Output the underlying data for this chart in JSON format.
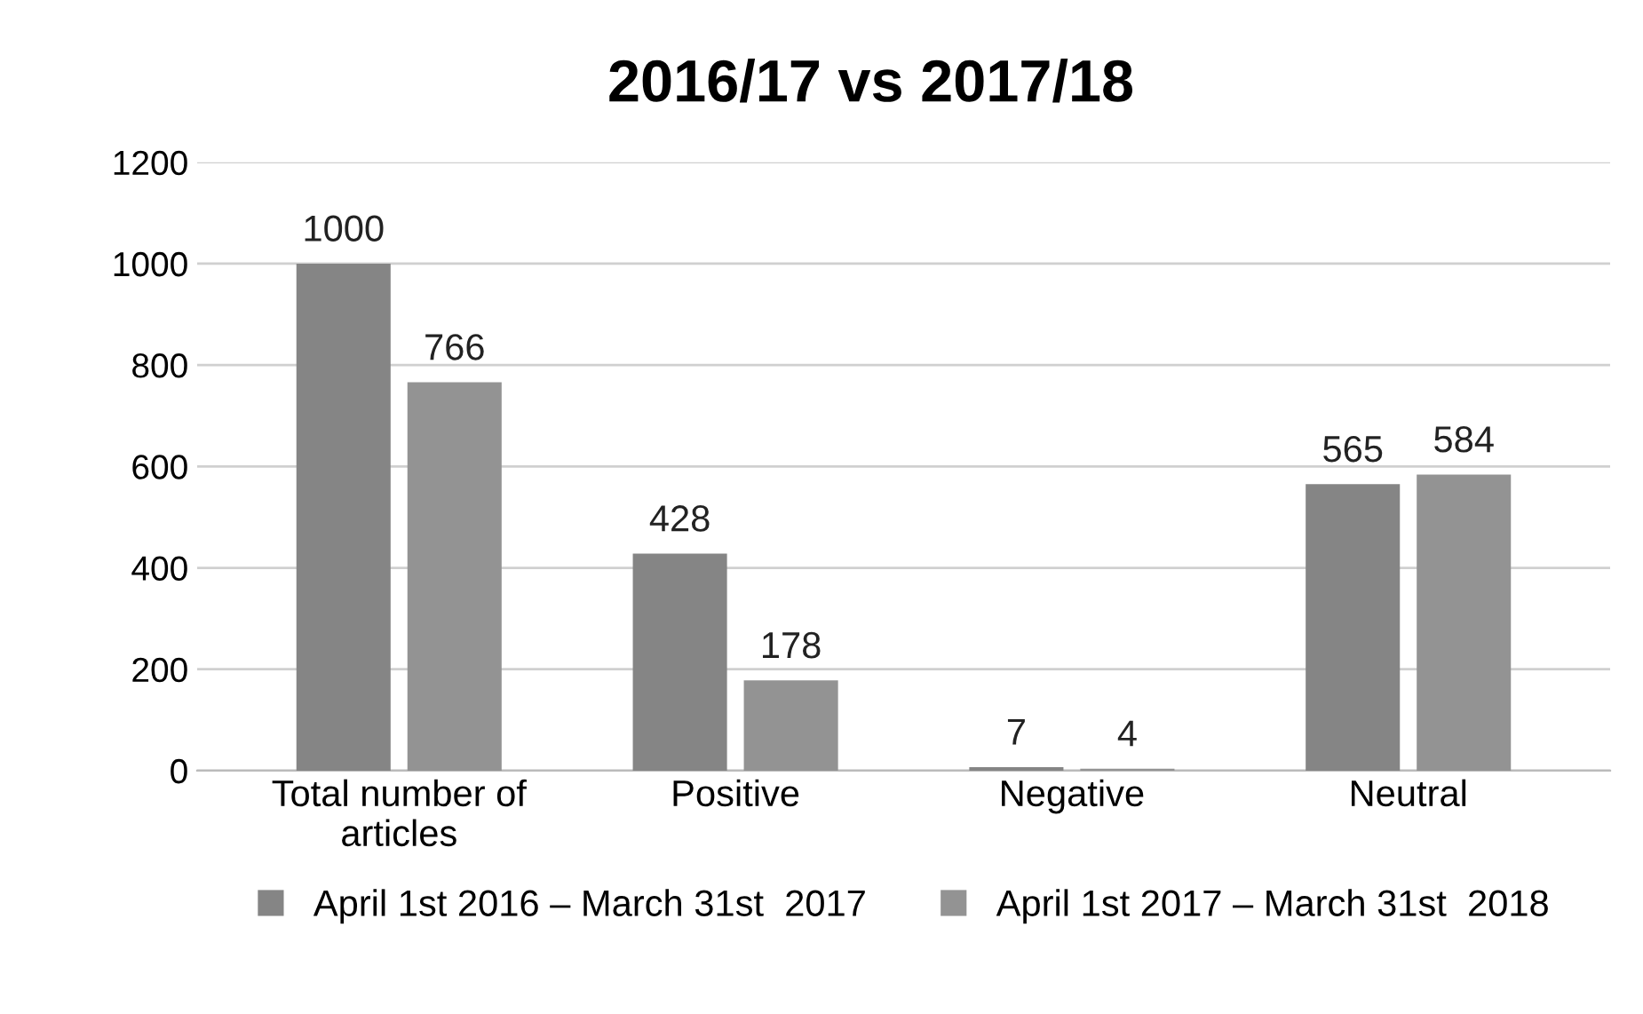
{
  "chart_data": {
    "type": "bar",
    "title": "2016/17 vs 2017/18",
    "categories": [
      "Total number of\narticles",
      "Positive",
      "Negative",
      "Neutral"
    ],
    "series": [
      {
        "name": "April 1st 2016 – March 31st  2017",
        "color": "#858585",
        "values": [
          1000,
          428,
          7,
          565
        ]
      },
      {
        "name": "April 1st 2017 – March 31st  2018",
        "color": "#939393",
        "values": [
          766,
          178,
          4,
          584
        ]
      }
    ],
    "ylim": [
      0,
      1200
    ],
    "yticks": [
      0,
      200,
      400,
      600,
      800,
      1000,
      1200
    ],
    "grid": "y",
    "legend": "bottom",
    "data_labels": true
  }
}
